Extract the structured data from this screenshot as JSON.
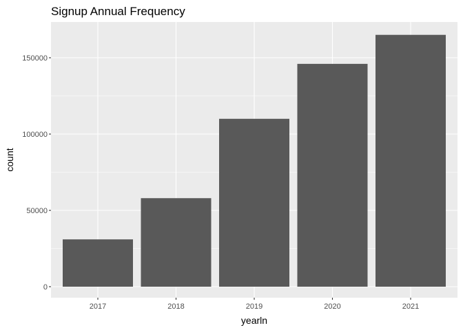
{
  "chart_data": {
    "type": "bar",
    "title": "Signup Annual Frequency",
    "xlabel": "yearln",
    "ylabel": "count",
    "categories": [
      "2017",
      "2018",
      "2019",
      "2020",
      "2021"
    ],
    "values": [
      31000,
      58000,
      110000,
      146000,
      165000
    ],
    "ylim": [
      0,
      173000
    ],
    "yticks": [
      0,
      50000,
      100000,
      150000
    ],
    "ytick_labels": [
      "0",
      "50000",
      "100000",
      "150000"
    ],
    "grid": true,
    "legend": "none",
    "colors": {
      "bar": "#595959",
      "panel_background": "#ebebeb",
      "gridline": "#ffffff"
    }
  }
}
